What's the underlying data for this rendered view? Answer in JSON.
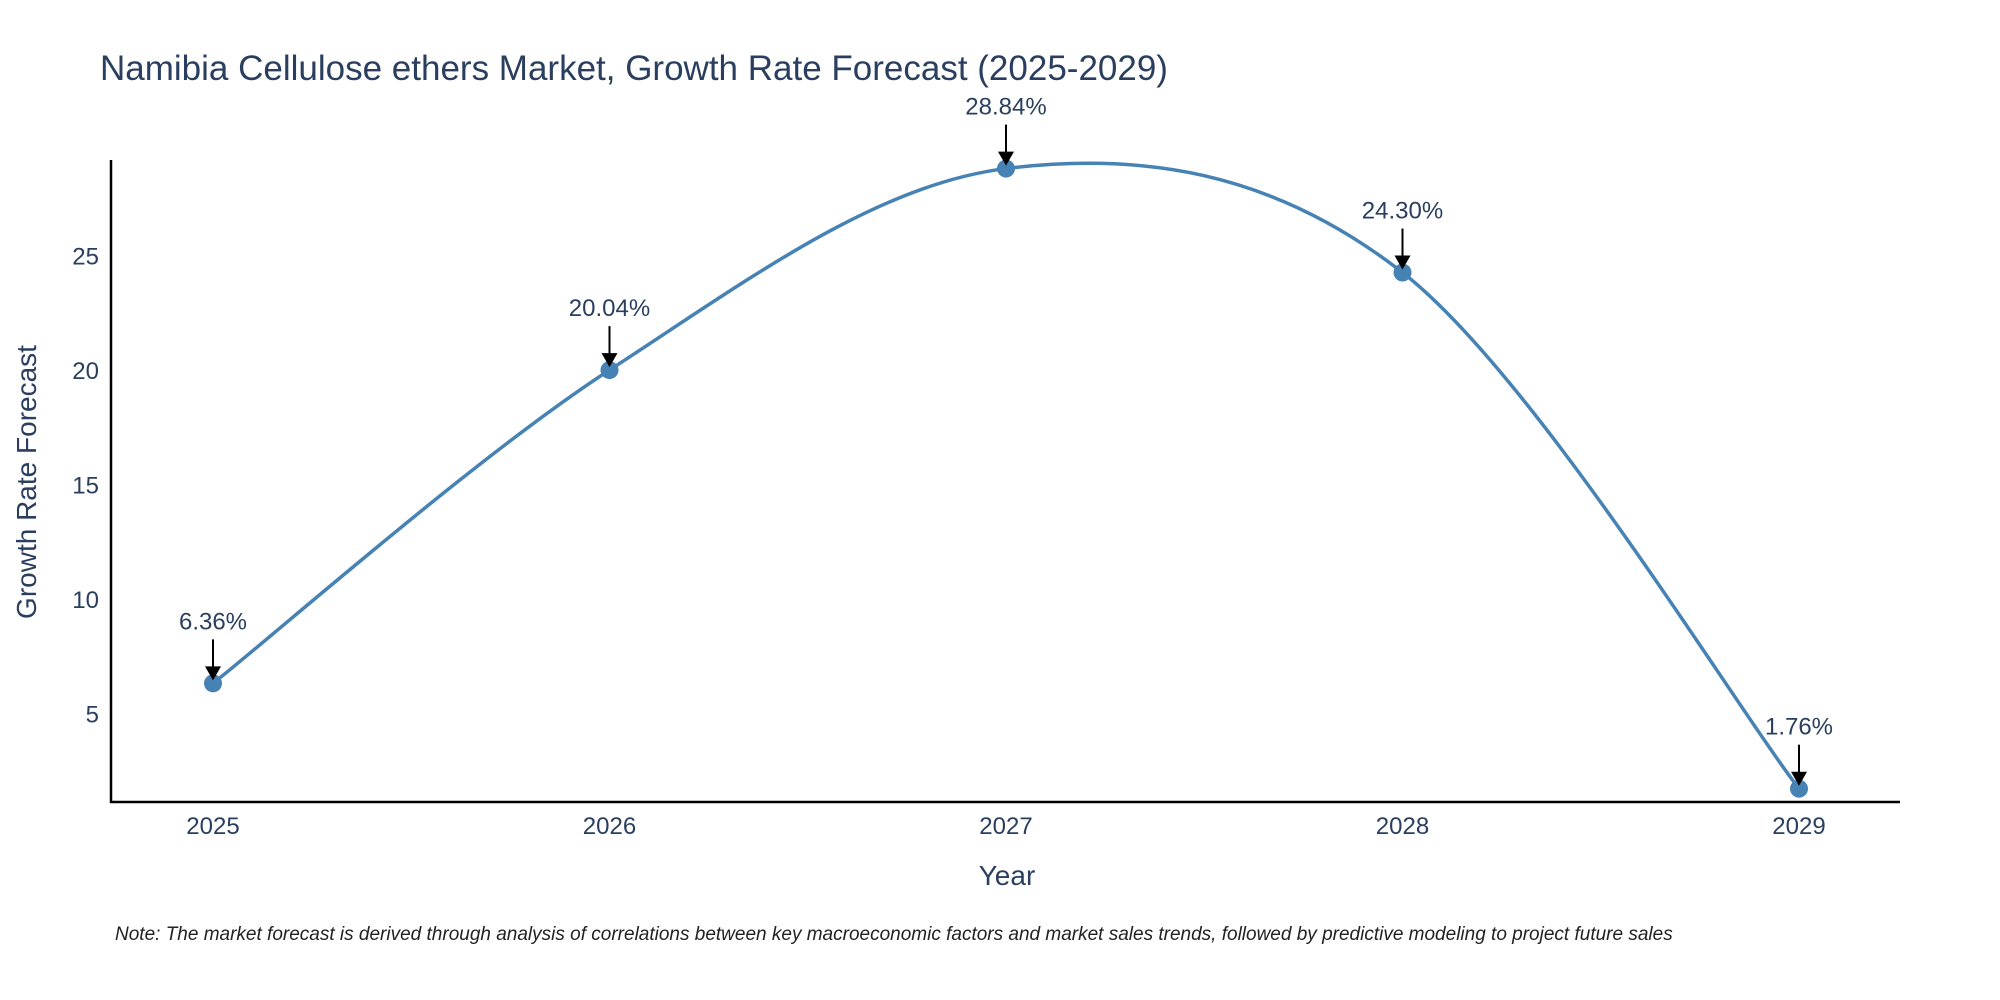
{
  "colors": {
    "line": "#4682B4",
    "marker": "#4682B4",
    "axis": "#000000",
    "text": "#2a3f5f",
    "arrow": "#000000"
  },
  "chart_data": {
    "type": "line",
    "title": "Namibia Cellulose ethers Market, Growth Rate Forecast (2025-2029)",
    "xlabel": "Year",
    "ylabel": "Growth Rate Forecast",
    "categories": [
      "2025",
      "2026",
      "2027",
      "2028",
      "2029"
    ],
    "series": [
      {
        "name": "Growth Rate Forecast",
        "values": [
          6.36,
          20.04,
          28.84,
          24.3,
          1.76
        ]
      }
    ],
    "annotations": [
      "6.36%",
      "20.04%",
      "28.84%",
      "24.30%",
      "1.76%"
    ],
    "yticks": [
      5,
      10,
      15,
      20,
      25
    ],
    "ytick_labels": [
      "5",
      "10",
      "15",
      "20",
      "25"
    ],
    "ylim": [
      1.2,
      29.2
    ],
    "grid": false,
    "line_shape": "spline",
    "note": "Note: The market forecast is derived through analysis of correlations between key macroeconomic factors and market sales trends, followed by predictive modeling to project future sales"
  }
}
